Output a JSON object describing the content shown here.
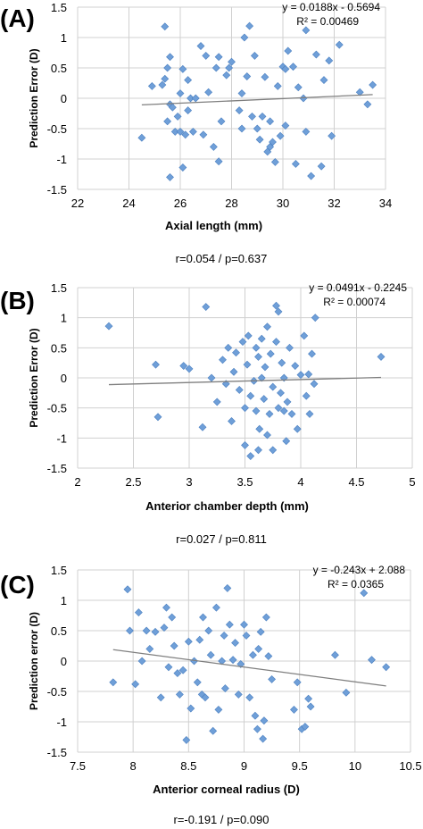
{
  "chart_data": [
    {
      "type": "scatter",
      "panel_label": "(A)",
      "xlabel": "Axial length (mm)",
      "ylabel": "Prediction Error (D)",
      "xlim": [
        22,
        34
      ],
      "ylim": [
        -1.5,
        1.5
      ],
      "xticks": [
        "22",
        "24",
        "26",
        "28",
        "30",
        "32",
        "34"
      ],
      "yticks": [
        "1.5",
        "1",
        "0.5",
        "0",
        "-0.5",
        "-1",
        "-1.5"
      ],
      "xtick_values": [
        22,
        24,
        26,
        28,
        30,
        32,
        34
      ],
      "ytick_values": [
        1.5,
        1,
        0.5,
        0,
        -0.5,
        -1,
        -1.5
      ],
      "grid": true,
      "equation": "y = 0.0188x - 0.5694",
      "r_squared": "R² = 0.00469",
      "trendline": {
        "slope": 0.0188,
        "intercept": -0.5694,
        "x_range": [
          24.5,
          33.5
        ]
      },
      "footnote": "r=0.054 / p=0.637",
      "marker_color": "#6f9fd8",
      "points": [
        {
          "x": 24.5,
          "y": -0.65
        },
        {
          "x": 24.9,
          "y": 0.2
        },
        {
          "x": 25.3,
          "y": 0.22
        },
        {
          "x": 25.4,
          "y": 1.18
        },
        {
          "x": 25.4,
          "y": 0.32
        },
        {
          "x": 25.5,
          "y": 0.5
        },
        {
          "x": 25.5,
          "y": -0.38
        },
        {
          "x": 25.6,
          "y": 0.68
        },
        {
          "x": 25.6,
          "y": -0.1
        },
        {
          "x": 25.6,
          "y": -1.3
        },
        {
          "x": 25.7,
          "y": -0.15
        },
        {
          "x": 25.8,
          "y": -0.55
        },
        {
          "x": 25.9,
          "y": -0.3
        },
        {
          "x": 26.0,
          "y": 0.08
        },
        {
          "x": 26.0,
          "y": -0.55
        },
        {
          "x": 26.1,
          "y": 0.48
        },
        {
          "x": 26.1,
          "y": -1.14
        },
        {
          "x": 26.2,
          "y": -0.6
        },
        {
          "x": 26.3,
          "y": 0.3
        },
        {
          "x": 26.3,
          "y": -0.2
        },
        {
          "x": 26.4,
          "y": 0.0
        },
        {
          "x": 26.5,
          "y": -0.55
        },
        {
          "x": 26.6,
          "y": 0.0
        },
        {
          "x": 26.8,
          "y": 0.86
        },
        {
          "x": 26.9,
          "y": -0.6
        },
        {
          "x": 27.0,
          "y": 0.7
        },
        {
          "x": 27.1,
          "y": 0.1
        },
        {
          "x": 27.3,
          "y": -0.8
        },
        {
          "x": 27.4,
          "y": 0.5
        },
        {
          "x": 27.5,
          "y": 0.68
        },
        {
          "x": 27.5,
          "y": -1.04
        },
        {
          "x": 27.6,
          "y": -0.38
        },
        {
          "x": 27.8,
          "y": 0.38
        },
        {
          "x": 27.9,
          "y": 0.5
        },
        {
          "x": 28.0,
          "y": 0.6
        },
        {
          "x": 28.3,
          "y": -0.2
        },
        {
          "x": 28.4,
          "y": 0.08
        },
        {
          "x": 28.4,
          "y": -0.5
        },
        {
          "x": 28.5,
          "y": 1.0
        },
        {
          "x": 28.6,
          "y": 0.36
        },
        {
          "x": 28.7,
          "y": 1.19
        },
        {
          "x": 28.8,
          "y": -0.3
        },
        {
          "x": 28.9,
          "y": 0.7
        },
        {
          "x": 29.0,
          "y": -0.5
        },
        {
          "x": 29.1,
          "y": -0.68
        },
        {
          "x": 29.2,
          "y": -0.3
        },
        {
          "x": 29.3,
          "y": 0.35
        },
        {
          "x": 29.4,
          "y": -0.88
        },
        {
          "x": 29.5,
          "y": -0.38
        },
        {
          "x": 29.5,
          "y": -0.8
        },
        {
          "x": 29.6,
          "y": -0.72
        },
        {
          "x": 29.7,
          "y": -1.05
        },
        {
          "x": 29.8,
          "y": 0.2
        },
        {
          "x": 29.9,
          "y": -0.62
        },
        {
          "x": 30.0,
          "y": 0.52
        },
        {
          "x": 30.1,
          "y": 0.48
        },
        {
          "x": 30.1,
          "y": -0.45
        },
        {
          "x": 30.2,
          "y": 0.78
        },
        {
          "x": 30.4,
          "y": 0.52
        },
        {
          "x": 30.5,
          "y": -1.08
        },
        {
          "x": 30.6,
          "y": 0.18
        },
        {
          "x": 30.8,
          "y": 0.0
        },
        {
          "x": 30.9,
          "y": 1.12
        },
        {
          "x": 30.9,
          "y": -0.55
        },
        {
          "x": 31.1,
          "y": -1.28
        },
        {
          "x": 31.3,
          "y": 0.72
        },
        {
          "x": 31.5,
          "y": -1.12
        },
        {
          "x": 31.6,
          "y": 0.3
        },
        {
          "x": 31.8,
          "y": 0.62
        },
        {
          "x": 31.9,
          "y": -0.62
        },
        {
          "x": 32.2,
          "y": 0.88
        },
        {
          "x": 33.0,
          "y": 0.1
        },
        {
          "x": 33.3,
          "y": -0.1
        },
        {
          "x": 33.5,
          "y": 0.22
        }
      ]
    },
    {
      "type": "scatter",
      "panel_label": "(B)",
      "xlabel": "Anterior chamber depth (mm)",
      "ylabel": "Prediction Error (D)",
      "xlim": [
        2,
        5
      ],
      "ylim": [
        -1.5,
        1.5
      ],
      "xticks": [
        "2",
        "2.5",
        "3",
        "3.5",
        "4",
        "4.5",
        "5"
      ],
      "yticks": [
        "1.5",
        "1",
        "0.5",
        "0",
        "-0.5",
        "-1",
        "-1.5"
      ],
      "xtick_values": [
        2,
        2.5,
        3,
        3.5,
        4,
        4.5,
        5
      ],
      "ytick_values": [
        1.5,
        1,
        0.5,
        0,
        -0.5,
        -1,
        -1.5
      ],
      "grid": true,
      "equation": "y = 0.0491x - 0.2245",
      "r_squared": "R² = 0.00074",
      "trendline": {
        "slope": 0.0491,
        "intercept": -0.2245,
        "x_range": [
          2.28,
          4.72
        ]
      },
      "footnote": "r=0.027 / p=0.811",
      "marker_color": "#6f9fd8",
      "points": [
        {
          "x": 2.28,
          "y": 0.86
        },
        {
          "x": 2.7,
          "y": 0.22
        },
        {
          "x": 2.72,
          "y": -0.65
        },
        {
          "x": 2.95,
          "y": 0.2
        },
        {
          "x": 3.0,
          "y": 0.15
        },
        {
          "x": 3.12,
          "y": -0.82
        },
        {
          "x": 3.15,
          "y": 1.18
        },
        {
          "x": 3.2,
          "y": 0.0
        },
        {
          "x": 3.25,
          "y": -0.4
        },
        {
          "x": 3.3,
          "y": 0.3
        },
        {
          "x": 3.33,
          "y": -0.1
        },
        {
          "x": 3.35,
          "y": 0.5
        },
        {
          "x": 3.38,
          "y": -0.72
        },
        {
          "x": 3.4,
          "y": 0.1
        },
        {
          "x": 3.42,
          "y": 0.42
        },
        {
          "x": 3.45,
          "y": -0.2
        },
        {
          "x": 3.48,
          "y": 0.6
        },
        {
          "x": 3.5,
          "y": -1.12
        },
        {
          "x": 3.5,
          "y": -0.5
        },
        {
          "x": 3.52,
          "y": 0.22
        },
        {
          "x": 3.53,
          "y": 0.7
        },
        {
          "x": 3.55,
          "y": -0.3
        },
        {
          "x": 3.55,
          "y": -1.3
        },
        {
          "x": 3.58,
          "y": -0.05
        },
        {
          "x": 3.6,
          "y": 0.5
        },
        {
          "x": 3.6,
          "y": -0.55
        },
        {
          "x": 3.62,
          "y": 0.35
        },
        {
          "x": 3.62,
          "y": -1.2
        },
        {
          "x": 3.63,
          "y": -0.85
        },
        {
          "x": 3.65,
          "y": 0.0
        },
        {
          "x": 3.65,
          "y": 0.65
        },
        {
          "x": 3.67,
          "y": -0.35
        },
        {
          "x": 3.68,
          "y": 0.18
        },
        {
          "x": 3.7,
          "y": 0.85
        },
        {
          "x": 3.7,
          "y": -0.95
        },
        {
          "x": 3.72,
          "y": -0.6
        },
        {
          "x": 3.73,
          "y": 0.4
        },
        {
          "x": 3.75,
          "y": -0.15
        },
        {
          "x": 3.75,
          "y": -1.2
        },
        {
          "x": 3.78,
          "y": 1.2
        },
        {
          "x": 3.78,
          "y": 0.6
        },
        {
          "x": 3.8,
          "y": 1.1
        },
        {
          "x": 3.8,
          "y": -0.5
        },
        {
          "x": 3.82,
          "y": -0.25
        },
        {
          "x": 3.83,
          "y": 0.25
        },
        {
          "x": 3.85,
          "y": -0.55
        },
        {
          "x": 3.85,
          "y": 0.0
        },
        {
          "x": 3.87,
          "y": -1.05
        },
        {
          "x": 3.88,
          "y": -0.4
        },
        {
          "x": 3.9,
          "y": 0.5
        },
        {
          "x": 3.92,
          "y": -0.6
        },
        {
          "x": 3.95,
          "y": 0.2
        },
        {
          "x": 3.97,
          "y": -0.85
        },
        {
          "x": 4.0,
          "y": 0.05
        },
        {
          "x": 4.03,
          "y": 0.7
        },
        {
          "x": 4.05,
          "y": -0.3
        },
        {
          "x": 4.07,
          "y": 0.06
        },
        {
          "x": 4.08,
          "y": -0.6
        },
        {
          "x": 4.1,
          "y": 0.4
        },
        {
          "x": 4.12,
          "y": -0.1
        },
        {
          "x": 4.13,
          "y": 1.0
        },
        {
          "x": 4.72,
          "y": 0.35
        }
      ]
    },
    {
      "type": "scatter",
      "panel_label": "(C)",
      "xlabel": "Anterior corneal radius (D)",
      "ylabel": "Prediction error (D)",
      "xlim": [
        7.5,
        10.5
      ],
      "ylim": [
        -1.5,
        1.5
      ],
      "xticks": [
        "7.5",
        "8",
        "8.5",
        "9",
        "9.5",
        "10",
        "10.5"
      ],
      "yticks": [
        "1.5",
        "1",
        "0.5",
        "0",
        "-0.5",
        "-1",
        "-1.5"
      ],
      "xtick_values": [
        7.5,
        8,
        8.5,
        9,
        9.5,
        10,
        10.5
      ],
      "ytick_values": [
        1.5,
        1,
        0.5,
        0,
        -0.5,
        -1,
        -1.5
      ],
      "grid": true,
      "equation": "y = -0.243x + 2.088",
      "r_squared": "R² = 0.0365",
      "trendline": {
        "slope": -0.243,
        "intercept": 2.088,
        "x_range": [
          7.82,
          10.28
        ]
      },
      "footnote": "r=-0.191 / p=0.090",
      "marker_color": "#6f9fd8",
      "points": [
        {
          "x": 7.82,
          "y": -0.35
        },
        {
          "x": 7.95,
          "y": 1.18
        },
        {
          "x": 7.97,
          "y": 0.5
        },
        {
          "x": 8.02,
          "y": -0.38
        },
        {
          "x": 8.05,
          "y": 0.8
        },
        {
          "x": 8.08,
          "y": 0.0
        },
        {
          "x": 8.12,
          "y": 0.5
        },
        {
          "x": 8.15,
          "y": 0.2
        },
        {
          "x": 8.2,
          "y": 0.48
        },
        {
          "x": 8.25,
          "y": -0.6
        },
        {
          "x": 8.28,
          "y": 0.55
        },
        {
          "x": 8.3,
          "y": 0.88
        },
        {
          "x": 8.32,
          "y": -0.1
        },
        {
          "x": 8.35,
          "y": 0.72
        },
        {
          "x": 8.37,
          "y": 0.25
        },
        {
          "x": 8.4,
          "y": -0.2
        },
        {
          "x": 8.42,
          "y": -0.55
        },
        {
          "x": 8.45,
          "y": -0.15
        },
        {
          "x": 8.48,
          "y": -1.3
        },
        {
          "x": 8.5,
          "y": 0.32
        },
        {
          "x": 8.52,
          "y": -0.78
        },
        {
          "x": 8.55,
          "y": 0.0
        },
        {
          "x": 8.58,
          "y": -0.35
        },
        {
          "x": 8.6,
          "y": 0.35
        },
        {
          "x": 8.62,
          "y": -0.55
        },
        {
          "x": 8.63,
          "y": 0.72
        },
        {
          "x": 8.65,
          "y": -0.6
        },
        {
          "x": 8.68,
          "y": 0.5
        },
        {
          "x": 8.7,
          "y": 0.1
        },
        {
          "x": 8.72,
          "y": -1.15
        },
        {
          "x": 8.75,
          "y": 0.88
        },
        {
          "x": 8.77,
          "y": -0.8
        },
        {
          "x": 8.8,
          "y": 0.0
        },
        {
          "x": 8.82,
          "y": 0.42
        },
        {
          "x": 8.83,
          "y": -0.45
        },
        {
          "x": 8.85,
          "y": 1.2
        },
        {
          "x": 8.87,
          "y": 0.6
        },
        {
          "x": 8.9,
          "y": 0.02
        },
        {
          "x": 8.92,
          "y": 0.3
        },
        {
          "x": 8.95,
          "y": -0.55
        },
        {
          "x": 8.97,
          "y": -0.05
        },
        {
          "x": 9.0,
          "y": 0.6
        },
        {
          "x": 9.02,
          "y": 0.42
        },
        {
          "x": 9.05,
          "y": -0.6
        },
        {
          "x": 9.08,
          "y": 0.1
        },
        {
          "x": 9.1,
          "y": -0.9
        },
        {
          "x": 9.12,
          "y": -1.12
        },
        {
          "x": 9.13,
          "y": 0.2
        },
        {
          "x": 9.15,
          "y": 0.48
        },
        {
          "x": 9.17,
          "y": -1.28
        },
        {
          "x": 9.18,
          "y": -0.98
        },
        {
          "x": 9.2,
          "y": 0.72
        },
        {
          "x": 9.22,
          "y": 0.08
        },
        {
          "x": 9.25,
          "y": -0.3
        },
        {
          "x": 9.45,
          "y": -0.8
        },
        {
          "x": 9.48,
          "y": -0.35
        },
        {
          "x": 9.52,
          "y": -1.12
        },
        {
          "x": 9.55,
          "y": -1.08
        },
        {
          "x": 9.58,
          "y": -0.62
        },
        {
          "x": 9.6,
          "y": -0.75
        },
        {
          "x": 9.82,
          "y": 0.1
        },
        {
          "x": 9.92,
          "y": -0.52
        },
        {
          "x": 10.08,
          "y": 1.12
        },
        {
          "x": 10.15,
          "y": 0.02
        },
        {
          "x": 10.28,
          "y": -0.1
        }
      ]
    }
  ]
}
